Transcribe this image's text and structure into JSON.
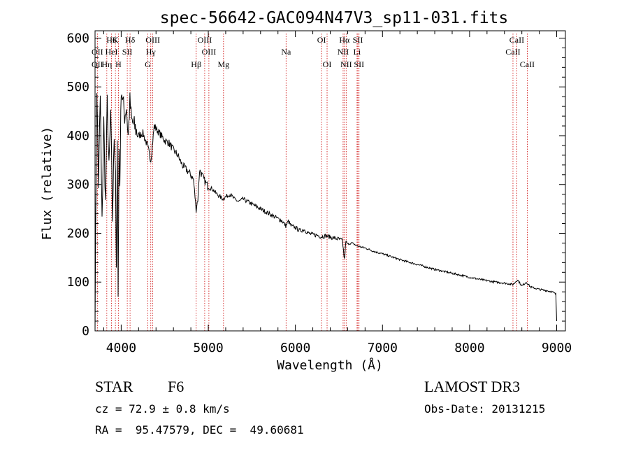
{
  "chart_data": {
    "type": "line",
    "title": "spec-56642-GAC094N47V3_sp11-031.fits",
    "xlabel": "Wavelength (Å)",
    "ylabel": "Flux (relative)",
    "xlim": [
      3700,
      9100
    ],
    "ylim": [
      0,
      615
    ],
    "xticks": [
      4000,
      5000,
      6000,
      7000,
      8000,
      9000
    ],
    "yticks": [
      0,
      100,
      200,
      300,
      400,
      500,
      600
    ],
    "xtick_labels": [
      "4000",
      "5000",
      "6000",
      "7000",
      "8000",
      "9000"
    ],
    "ytick_labels": [
      "0",
      "100",
      "200",
      "300",
      "400",
      "500",
      "600"
    ],
    "series": [
      {
        "name": "spectrum",
        "x": [
          3700,
          3720,
          3740,
          3760,
          3780,
          3800,
          3820,
          3840,
          3860,
          3880,
          3900,
          3920,
          3935,
          3945,
          3955,
          3965,
          3975,
          3985,
          4000,
          4020,
          4040,
          4060,
          4080,
          4100,
          4120,
          4150,
          4200,
          4250,
          4300,
          4340,
          4380,
          4420,
          4460,
          4500,
          4550,
          4600,
          4650,
          4700,
          4750,
          4800,
          4830,
          4860,
          4880,
          4900,
          4950,
          5000,
          5050,
          5100,
          5170,
          5200,
          5250,
          5300,
          5350,
          5400,
          5450,
          5500,
          5550,
          5600,
          5650,
          5700,
          5750,
          5800,
          5850,
          5890,
          5920,
          5950,
          6000,
          6050,
          6100,
          6150,
          6200,
          6250,
          6300,
          6350,
          6400,
          6450,
          6500,
          6540,
          6563,
          6580,
          6600,
          6650,
          6700,
          6750,
          6800,
          6900,
          7000,
          7100,
          7200,
          7300,
          7400,
          7500,
          7600,
          7700,
          7800,
          7900,
          8000,
          8100,
          8200,
          8300,
          8400,
          8500,
          8550,
          8600,
          8650,
          8700,
          8800,
          8900,
          8950,
          8990,
          9000
        ],
        "y": [
          25,
          500,
          300,
          480,
          220,
          430,
          260,
          470,
          330,
          450,
          230,
          400,
          330,
          110,
          380,
          90,
          370,
          300,
          500,
          470,
          440,
          460,
          400,
          470,
          430,
          420,
          400,
          405,
          380,
          350,
          420,
          410,
          400,
          390,
          385,
          370,
          360,
          340,
          330,
          320,
          310,
          250,
          270,
          330,
          310,
          295,
          290,
          280,
          270,
          275,
          280,
          270,
          265,
          270,
          265,
          260,
          255,
          250,
          245,
          240,
          235,
          230,
          225,
          215,
          225,
          215,
          212,
          205,
          208,
          200,
          197,
          196,
          193,
          195,
          192,
          190,
          188,
          185,
          145,
          182,
          178,
          180,
          175,
          172,
          170,
          163,
          158,
          152,
          146,
          141,
          136,
          131,
          126,
          122,
          118,
          114,
          110,
          106,
          103,
          100,
          98,
          95,
          105,
          92,
          100,
          90,
          85,
          82,
          80,
          75,
          20
        ]
      }
    ],
    "lines": [
      {
        "label": "Hδ",
        "wave": 4102,
        "row": 1
      },
      {
        "label": "K",
        "wave": 3934,
        "row": 1
      },
      {
        "label": "H6",
        "wave": 3889,
        "row": 1
      },
      {
        "label": "OIII",
        "wave": 4363,
        "row": 1
      },
      {
        "label": "OIII",
        "wave": 4959,
        "row": 1
      },
      {
        "label": "OI",
        "wave": 6300,
        "row": 1
      },
      {
        "label": "Hα",
        "wave": 6563,
        "row": 1
      },
      {
        "label": "SII",
        "wave": 6717,
        "row": 1
      },
      {
        "label": "CaII",
        "wave": 8542,
        "row": 1
      },
      {
        "label": "OII",
        "wave": 3727,
        "row": 2
      },
      {
        "label": "HeI",
        "wave": 3889,
        "row": 2
      },
      {
        "label": "SII",
        "wave": 4070,
        "row": 2
      },
      {
        "label": "Hγ",
        "wave": 4340,
        "row": 2
      },
      {
        "label": "OIII",
        "wave": 5007,
        "row": 2
      },
      {
        "label": "Na",
        "wave": 5893,
        "row": 2
      },
      {
        "label": "NII",
        "wave": 6548,
        "row": 2
      },
      {
        "label": "Li",
        "wave": 6708,
        "row": 2
      },
      {
        "label": "CaII",
        "wave": 8498,
        "row": 2
      },
      {
        "label": "OII",
        "wave": 3727,
        "row": 3
      },
      {
        "label": "Hη",
        "wave": 3835,
        "row": 3
      },
      {
        "label": "H",
        "wave": 3968,
        "row": 3
      },
      {
        "label": "G",
        "wave": 4305,
        "row": 3
      },
      {
        "label": "Hβ",
        "wave": 4861,
        "row": 3
      },
      {
        "label": "Mg",
        "wave": 5175,
        "row": 3
      },
      {
        "label": "OI",
        "wave": 6364,
        "row": 3
      },
      {
        "label": "NII",
        "wave": 6583,
        "row": 3
      },
      {
        "label": "SII",
        "wave": 6731,
        "row": 3
      },
      {
        "label": "CaII",
        "wave": 8662,
        "row": 3
      }
    ]
  },
  "info": {
    "object_type": "STAR",
    "subclass": "F6",
    "survey": "LAMOST DR3",
    "cz": "cz = 72.9 ± 0.8 km/s",
    "obs_date": "Obs-Date: 20131215",
    "radec": "RA =  95.47579, DEC =  49.60681"
  },
  "colors": {
    "spectrum": "#000000",
    "line_marker": "#cc0000",
    "axis": "#000000"
  }
}
